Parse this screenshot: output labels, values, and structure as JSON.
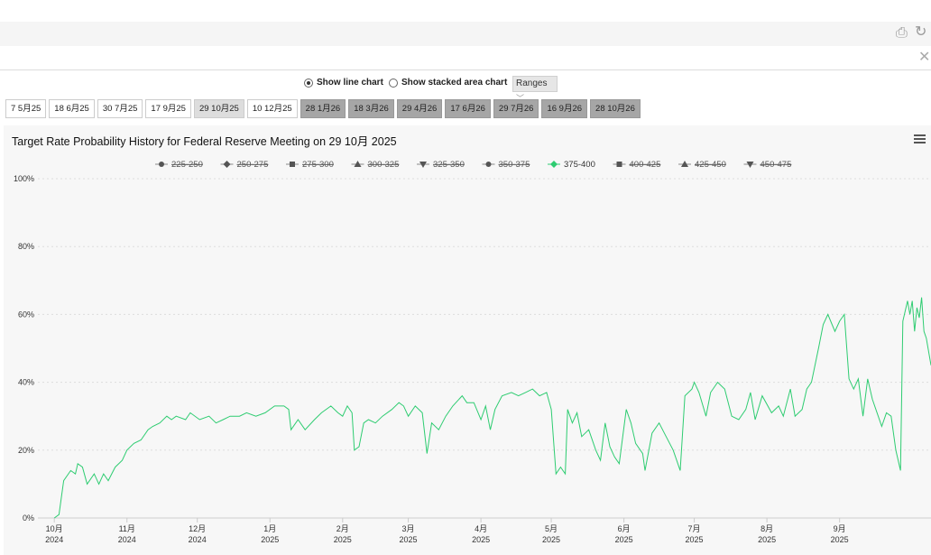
{
  "view_options": {
    "line_label": "Show line chart",
    "stacked_label": "Show stacked area chart",
    "ranges_label": "Ranges"
  },
  "meeting_tabs": [
    "7 5月25",
    "18 6月25",
    "30 7月25",
    "17 9月25",
    "29 10月25",
    "10 12月25",
    "28 1月26",
    "18 3月26",
    "29 4月26",
    "17 6月26",
    "29 7月26",
    "16 9月26",
    "28 10月26"
  ],
  "chart_data": {
    "type": "line",
    "title": "Target Rate Probability History for Federal Reserve Meeting on 29 10月 2025",
    "legend": [
      {
        "name": "225-250",
        "marker": "circle",
        "active": false
      },
      {
        "name": "250-275",
        "marker": "diamond",
        "active": false
      },
      {
        "name": "275-300",
        "marker": "square",
        "active": false
      },
      {
        "name": "300-325",
        "marker": "triangle",
        "active": false
      },
      {
        "name": "325-350",
        "marker": "triangle-down",
        "active": false
      },
      {
        "name": "350-375",
        "marker": "circle",
        "active": false
      },
      {
        "name": "375-400",
        "marker": "diamond",
        "active": true,
        "color": "#2ecc71"
      },
      {
        "name": "400-425",
        "marker": "square",
        "active": false
      },
      {
        "name": "425-450",
        "marker": "triangle",
        "active": false
      },
      {
        "name": "450-475",
        "marker": "triangle-down",
        "active": false
      }
    ],
    "y_ticks": [
      "0%",
      "20%",
      "40%",
      "60%",
      "80%",
      "100%"
    ],
    "ylim": [
      0,
      100
    ],
    "x_ticks": [
      {
        "month": "10月",
        "year": "2024",
        "date": "2024-10-01"
      },
      {
        "month": "11月",
        "year": "2024",
        "date": "2024-11-01"
      },
      {
        "month": "12月",
        "year": "2024",
        "date": "2024-12-01"
      },
      {
        "month": "1月",
        "year": "2025",
        "date": "2025-01-01"
      },
      {
        "month": "2月",
        "year": "2025",
        "date": "2025-02-01"
      },
      {
        "month": "3月",
        "year": "2025",
        "date": "2025-03-01"
      },
      {
        "month": "4月",
        "year": "2025",
        "date": "2025-04-01"
      },
      {
        "month": "5月",
        "year": "2025",
        "date": "2025-05-01"
      },
      {
        "month": "6月",
        "year": "2025",
        "date": "2025-06-01"
      },
      {
        "month": "7月",
        "year": "2025",
        "date": "2025-07-01"
      },
      {
        "month": "8月",
        "year": "2025",
        "date": "2025-08-01"
      },
      {
        "month": "9月",
        "year": "2025",
        "date": "2025-09-01"
      }
    ],
    "xlim": [
      "2024-09-24",
      "2025-10-10"
    ],
    "series": [
      {
        "name": "375-400",
        "color": "#2ecc71",
        "points": [
          [
            "2024-10-01",
            0
          ],
          [
            "2024-10-03",
            1
          ],
          [
            "2024-10-05",
            11
          ],
          [
            "2024-10-08",
            14
          ],
          [
            "2024-10-10",
            13
          ],
          [
            "2024-10-11",
            16
          ],
          [
            "2024-10-13",
            15
          ],
          [
            "2024-10-15",
            10
          ],
          [
            "2024-10-18",
            13
          ],
          [
            "2024-10-20",
            10
          ],
          [
            "2024-10-22",
            13
          ],
          [
            "2024-10-24",
            11
          ],
          [
            "2024-10-27",
            15
          ],
          [
            "2024-10-30",
            17
          ],
          [
            "2024-11-01",
            20
          ],
          [
            "2024-11-04",
            22
          ],
          [
            "2024-11-07",
            23
          ],
          [
            "2024-11-10",
            26
          ],
          [
            "2024-11-12",
            27
          ],
          [
            "2024-11-15",
            28
          ],
          [
            "2024-11-18",
            30
          ],
          [
            "2024-11-20",
            29
          ],
          [
            "2024-11-22",
            30
          ],
          [
            "2024-11-26",
            29
          ],
          [
            "2024-11-28",
            31
          ],
          [
            "2024-12-02",
            29
          ],
          [
            "2024-12-06",
            30
          ],
          [
            "2024-12-09",
            28
          ],
          [
            "2024-12-12",
            29
          ],
          [
            "2024-12-15",
            30
          ],
          [
            "2024-12-19",
            30
          ],
          [
            "2024-12-22",
            31
          ],
          [
            "2024-12-26",
            30
          ],
          [
            "2024-12-30",
            31
          ],
          [
            "2025-01-03",
            33
          ],
          [
            "2025-01-07",
            33
          ],
          [
            "2025-01-09",
            32
          ],
          [
            "2025-01-10",
            26
          ],
          [
            "2025-01-13",
            29
          ],
          [
            "2025-01-16",
            26
          ],
          [
            "2025-01-20",
            29
          ],
          [
            "2025-01-23",
            31
          ],
          [
            "2025-01-27",
            33
          ],
          [
            "2025-01-30",
            31
          ],
          [
            "2025-02-01",
            30
          ],
          [
            "2025-02-03",
            33
          ],
          [
            "2025-02-05",
            31
          ],
          [
            "2025-02-06",
            20
          ],
          [
            "2025-02-08",
            21
          ],
          [
            "2025-02-10",
            28
          ],
          [
            "2025-02-12",
            29
          ],
          [
            "2025-02-15",
            28
          ],
          [
            "2025-02-18",
            30
          ],
          [
            "2025-02-22",
            32
          ],
          [
            "2025-02-25",
            34
          ],
          [
            "2025-02-27",
            33
          ],
          [
            "2025-03-01",
            30
          ],
          [
            "2025-03-04",
            33
          ],
          [
            "2025-03-07",
            31
          ],
          [
            "2025-03-09",
            19
          ],
          [
            "2025-03-11",
            28
          ],
          [
            "2025-03-14",
            26
          ],
          [
            "2025-03-17",
            30
          ],
          [
            "2025-03-20",
            33
          ],
          [
            "2025-03-24",
            36
          ],
          [
            "2025-03-26",
            34
          ],
          [
            "2025-03-29",
            34
          ],
          [
            "2025-04-01",
            29
          ],
          [
            "2025-04-03",
            33
          ],
          [
            "2025-04-05",
            26
          ],
          [
            "2025-04-07",
            32
          ],
          [
            "2025-04-10",
            36
          ],
          [
            "2025-04-14",
            37
          ],
          [
            "2025-04-17",
            36
          ],
          [
            "2025-04-20",
            37
          ],
          [
            "2025-04-23",
            38
          ],
          [
            "2025-04-26",
            36
          ],
          [
            "2025-04-29",
            37
          ],
          [
            "2025-05-01",
            32
          ],
          [
            "2025-05-03",
            13
          ],
          [
            "2025-05-05",
            15
          ],
          [
            "2025-05-07",
            13
          ],
          [
            "2025-05-08",
            32
          ],
          [
            "2025-05-10",
            28
          ],
          [
            "2025-05-12",
            31
          ],
          [
            "2025-05-14",
            24
          ],
          [
            "2025-05-17",
            26
          ],
          [
            "2025-05-20",
            20
          ],
          [
            "2025-05-22",
            17
          ],
          [
            "2025-05-24",
            28
          ],
          [
            "2025-05-26",
            21
          ],
          [
            "2025-05-28",
            18
          ],
          [
            "2025-05-30",
            16
          ],
          [
            "2025-06-02",
            32
          ],
          [
            "2025-06-04",
            28
          ],
          [
            "2025-06-06",
            22
          ],
          [
            "2025-06-09",
            19
          ],
          [
            "2025-06-10",
            14
          ],
          [
            "2025-06-13",
            25
          ],
          [
            "2025-06-16",
            28
          ],
          [
            "2025-06-19",
            24
          ],
          [
            "2025-06-22",
            20
          ],
          [
            "2025-06-25",
            14
          ],
          [
            "2025-06-27",
            36
          ],
          [
            "2025-06-30",
            38
          ],
          [
            "2025-07-01",
            40
          ],
          [
            "2025-07-03",
            37
          ],
          [
            "2025-07-06",
            30
          ],
          [
            "2025-07-08",
            37
          ],
          [
            "2025-07-11",
            40
          ],
          [
            "2025-07-14",
            38
          ],
          [
            "2025-07-17",
            30
          ],
          [
            "2025-07-20",
            29
          ],
          [
            "2025-07-23",
            32
          ],
          [
            "2025-07-25",
            37
          ],
          [
            "2025-07-27",
            29
          ],
          [
            "2025-07-30",
            36
          ],
          [
            "2025-08-03",
            31
          ],
          [
            "2025-08-06",
            33
          ],
          [
            "2025-08-08",
            30
          ],
          [
            "2025-08-11",
            38
          ],
          [
            "2025-08-13",
            30
          ],
          [
            "2025-08-16",
            32
          ],
          [
            "2025-08-18",
            38
          ],
          [
            "2025-08-20",
            40
          ],
          [
            "2025-08-23",
            50
          ],
          [
            "2025-08-25",
            57
          ],
          [
            "2025-08-27",
            60
          ],
          [
            "2025-08-30",
            55
          ],
          [
            "2025-09-01",
            58
          ],
          [
            "2025-09-03",
            60
          ],
          [
            "2025-09-05",
            41
          ],
          [
            "2025-09-07",
            38
          ],
          [
            "2025-09-09",
            41
          ],
          [
            "2025-09-11",
            30
          ],
          [
            "2025-09-13",
            41
          ],
          [
            "2025-09-15",
            35
          ],
          [
            "2025-09-17",
            31
          ],
          [
            "2025-09-19",
            27
          ],
          [
            "2025-09-21",
            31
          ],
          [
            "2025-09-23",
            30
          ],
          [
            "2025-09-25",
            20
          ],
          [
            "2025-09-27",
            14
          ],
          [
            "2025-09-28",
            58
          ],
          [
            "2025-09-30",
            64
          ],
          [
            "2025-10-01",
            60
          ],
          [
            "2025-10-02",
            64
          ],
          [
            "2025-10-03",
            55
          ],
          [
            "2025-10-04",
            62
          ],
          [
            "2025-10-05",
            59
          ],
          [
            "2025-10-06",
            65
          ],
          [
            "2025-10-07",
            55
          ],
          [
            "2025-10-08",
            53
          ],
          [
            "2025-10-10",
            45
          ]
        ]
      }
    ]
  }
}
